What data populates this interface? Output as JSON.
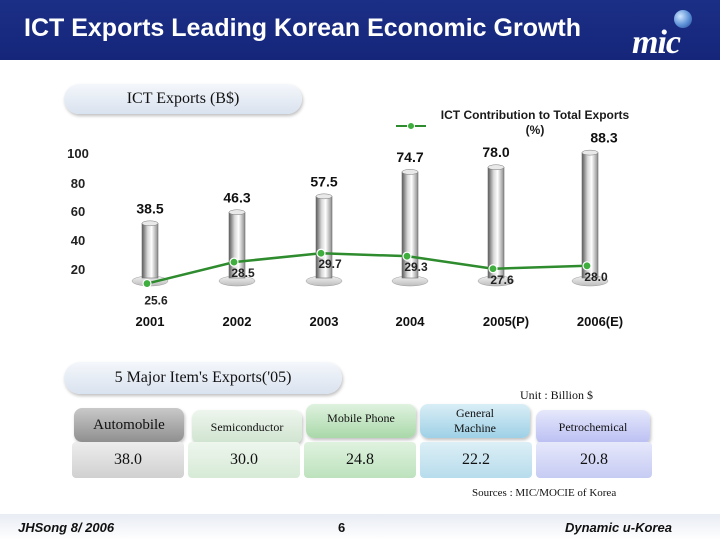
{
  "header": {
    "title": "ICT Exports Leading Korean Economic Growth",
    "logo_text": "mic",
    "bg_color": "#1b2f86"
  },
  "sections": {
    "exports_label": "ICT Exports (B$)",
    "major_items_label": "5 Major Item's Exports('05)"
  },
  "legend": {
    "contribution_label": "ICT Contribution to Total Exports (%)",
    "line_color": "#2e8b2e"
  },
  "chart_data": {
    "type": "bar",
    "categories": [
      "2001",
      "2002",
      "2003",
      "2004",
      "2005(P)",
      "2006(E)"
    ],
    "series": [
      {
        "values": [
          38.5,
          46.3,
          57.5,
          74.7,
          78.0,
          88.3
        ],
        "kind": "bar"
      },
      {
        "name": "ICT Contribution to Total Exports (%)",
        "values": [
          25.6,
          28.5,
          29.7,
          29.3,
          27.6,
          28.0
        ],
        "kind": "line",
        "color": "#2e8b2e"
      }
    ],
    "title": "ICT Exports (B$)",
    "y_ticks": [
      20,
      40,
      60,
      80,
      100
    ],
    "ylim": [
      0,
      110
    ],
    "grid": false
  },
  "table": {
    "unit": "Unit : Billion $",
    "items": [
      {
        "name": "Automobile",
        "value": "38.0"
      },
      {
        "name": "Semiconductor",
        "value": "30.0"
      },
      {
        "name": "Mobile Phone",
        "value": "24.8"
      },
      {
        "name": "General Machine",
        "value": "22.2"
      },
      {
        "name": "Petrochemical",
        "value": "20.8"
      }
    ],
    "source": "Sources : MIC/MOCIE of Korea"
  },
  "footer": {
    "left": "JHSong 8/ 2006",
    "page": "6",
    "right": "Dynamic u-Korea"
  }
}
